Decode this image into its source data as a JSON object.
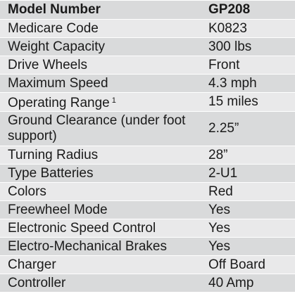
{
  "table": {
    "header": {
      "label": "Model Number",
      "value": "GP208"
    },
    "rows": [
      {
        "label": "Medicare Code",
        "value": "K0823"
      },
      {
        "label": "Weight Capacity",
        "value": "300 lbs"
      },
      {
        "label": "Drive Wheels",
        "value": "Front"
      },
      {
        "label": "Maximum Speed",
        "value": "4.3 mph"
      },
      {
        "label": "Operating Range",
        "footnote": "1",
        "value": "15 miles"
      },
      {
        "label": "Ground Clearance (under foot support)",
        "value": "2.25”"
      },
      {
        "label": "Turning Radius",
        "value": "28”"
      },
      {
        "label": "Type Batteries",
        "value": "2-U1"
      },
      {
        "label": "Colors",
        "value": "Red"
      },
      {
        "label": "Freewheel Mode",
        "value": "Yes"
      },
      {
        "label": "Electronic Speed Control",
        "value": "Yes"
      },
      {
        "label": "Electro-Mechanical Brakes",
        "value": "Yes"
      },
      {
        "label": "Charger",
        "value": "Off Board"
      },
      {
        "label": "Controller",
        "value": "40 Amp"
      }
    ]
  }
}
